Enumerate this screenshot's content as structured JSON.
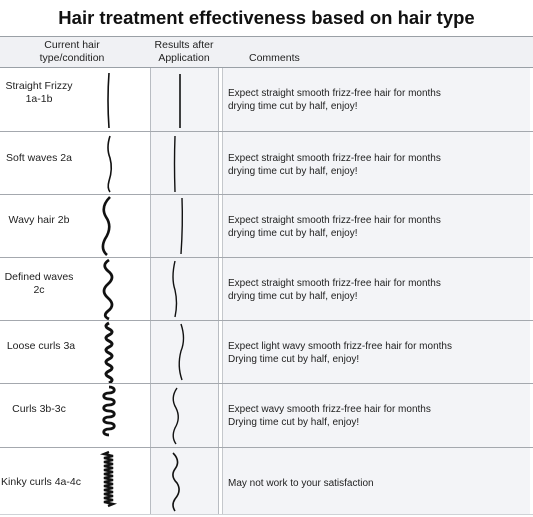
{
  "title": "Hair treatment effectiveness based on hair type",
  "headers": {
    "current": "Current hair type/condition",
    "results": "Results after Application",
    "comments": "Comments"
  },
  "rows": [
    {
      "label": "Straight Frizzy 1a-1b",
      "comment_line1": "Expect straight smooth frizz-free hair for months",
      "comment_line2": "drying time cut by half, enjoy!"
    },
    {
      "label": "Soft waves 2a",
      "comment_line1": "Expect straight smooth frizz-free hair for months",
      "comment_line2": "drying time cut by half, enjoy!"
    },
    {
      "label": "Wavy hair 2b",
      "comment_line1": "Expect straight smooth frizz-free hair for months",
      "comment_line2": "drying time cut by half, enjoy!"
    },
    {
      "label": "Defined waves 2c",
      "comment_line1": "Expect straight smooth frizz-free hair for months",
      "comment_line2": "drying time cut by half, enjoy!"
    },
    {
      "label": "Loose curls 3a",
      "comment_line1": "Expect light wavy smooth frizz-free hair for months",
      "comment_line2": "Drying time cut by half, enjoy!"
    },
    {
      "label": "Curls 3b-3c",
      "comment_line1": "Expect wavy smooth frizz-free hair for months",
      "comment_line2": "Drying time cut by half, enjoy!"
    },
    {
      "label": "Kinky curls 4a-4c",
      "comment_line1": "May not work to your satisfaction",
      "comment_line2": ""
    }
  ]
}
